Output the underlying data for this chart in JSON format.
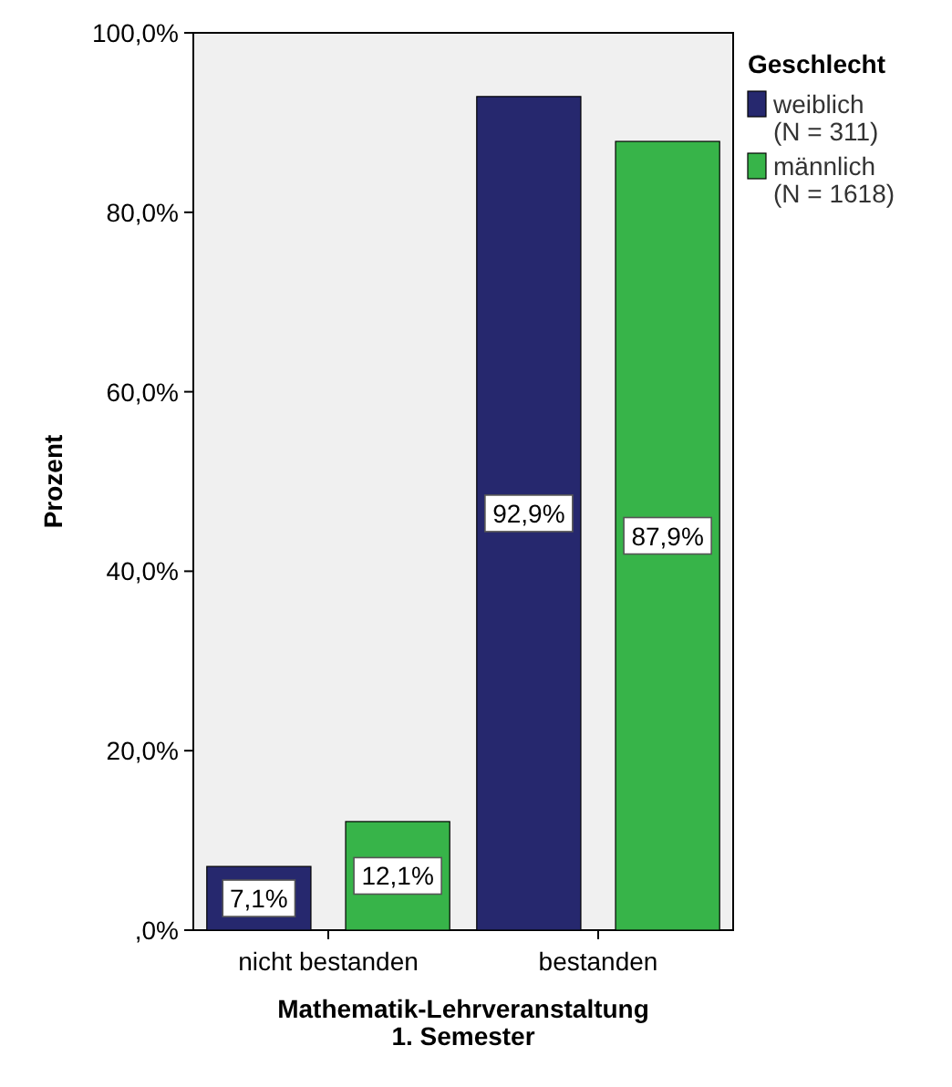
{
  "chart_data": {
    "type": "bar",
    "xlabel": "Mathematik-Lehrveranstaltung\n1. Semester",
    "ylabel": "Prozent",
    "legend_title": "Geschlecht",
    "legend": "top right",
    "grid": false,
    "categories": [
      "nicht bestanden",
      "bestanden"
    ],
    "series": [
      {
        "name": "weiblich\n(N = 311)",
        "color": "#26286e",
        "values": [
          7.1,
          92.9
        ],
        "value_labels": [
          "7,1%",
          "92,9%"
        ]
      },
      {
        "name": "männlich\n(N = 1618)",
        "color": "#37b449",
        "values": [
          12.1,
          87.9
        ],
        "value_labels": [
          "12,1%",
          "87,9%"
        ]
      }
    ],
    "ylim": [
      0,
      100
    ],
    "yticks": [
      {
        "value": 0,
        "label": ",0%"
      },
      {
        "value": 20,
        "label": "20,0%"
      },
      {
        "value": 40,
        "label": "40,0%"
      },
      {
        "value": 60,
        "label": "60,0%"
      },
      {
        "value": 80,
        "label": "80,0%"
      },
      {
        "value": 100,
        "label": "100,0%"
      }
    ]
  }
}
